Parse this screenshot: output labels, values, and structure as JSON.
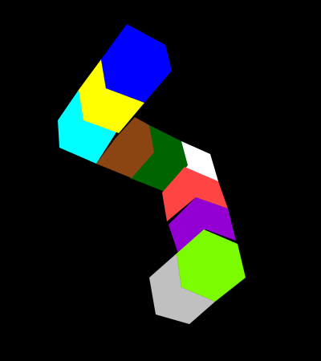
{
  "game": {
    "background_color": "#000000",
    "segments": [
      {
        "name": "white-segment",
        "color": "#ffffff"
      },
      {
        "name": "green-segment",
        "color": "#006400"
      },
      {
        "name": "brown-segment",
        "color": "#8b4513"
      },
      {
        "name": "cyan-segment",
        "color": "#00ffff"
      },
      {
        "name": "yellow-segment",
        "color": "#ffff00"
      },
      {
        "name": "blue-segment",
        "color": "#0000ff"
      },
      {
        "name": "red-segment",
        "color": "#ff4444"
      },
      {
        "name": "purple-segment",
        "color": "#9400d3"
      },
      {
        "name": "gray-segment",
        "color": "#c0c0c0"
      },
      {
        "name": "lime-segment",
        "color": "#7cfc00"
      }
    ]
  }
}
